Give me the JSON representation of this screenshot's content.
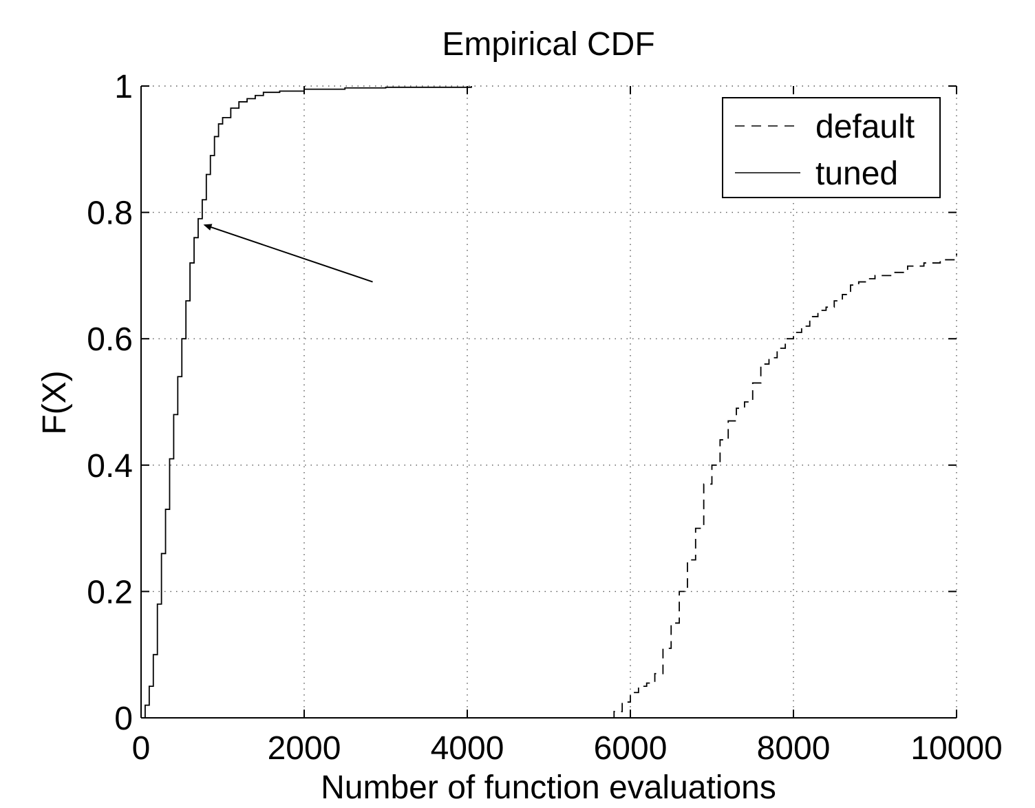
{
  "chart_data": {
    "type": "line",
    "title": "Empirical CDF",
    "xlabel": "Number of function evaluations",
    "ylabel": "F(X)",
    "xlim": [
      0,
      10000
    ],
    "ylim": [
      0,
      1
    ],
    "xticks": [
      0,
      2000,
      4000,
      6000,
      8000,
      10000
    ],
    "yticks": [
      0,
      0.2,
      0.4,
      0.6,
      0.8,
      1
    ],
    "xtick_labels": [
      "0",
      "2000",
      "4000",
      "6000",
      "8000",
      "10000"
    ],
    "ytick_labels": [
      "0",
      "0.2",
      "0.4",
      "0.6",
      "0.8",
      "1"
    ],
    "grid": true,
    "legend_position": "top-right",
    "series": [
      {
        "name": "default",
        "style": "dashed",
        "color": "#000000",
        "x": [
          4800,
          5700,
          5800,
          5900,
          6000,
          6100,
          6200,
          6300,
          6400,
          6500,
          6600,
          6700,
          6800,
          6900,
          7000,
          7100,
          7200,
          7300,
          7400,
          7500,
          7600,
          7700,
          7800,
          7900,
          8000,
          8100,
          8200,
          8300,
          8400,
          8500,
          8600,
          8700,
          8800,
          8900,
          9000,
          9200,
          9400,
          9600,
          9800,
          10000
        ],
        "y": [
          0,
          0,
          0.01,
          0.025,
          0.04,
          0.05,
          0.055,
          0.07,
          0.11,
          0.15,
          0.2,
          0.25,
          0.3,
          0.37,
          0.4,
          0.44,
          0.47,
          0.49,
          0.5,
          0.53,
          0.56,
          0.57,
          0.585,
          0.6,
          0.61,
          0.62,
          0.635,
          0.645,
          0.65,
          0.66,
          0.67,
          0.685,
          0.69,
          0.695,
          0.7,
          0.705,
          0.715,
          0.72,
          0.725,
          0.735
        ]
      },
      {
        "name": "tuned",
        "style": "solid",
        "color": "#000000",
        "x": [
          0,
          50,
          100,
          150,
          200,
          250,
          300,
          350,
          400,
          450,
          500,
          550,
          600,
          650,
          700,
          750,
          800,
          850,
          900,
          950,
          1000,
          1100,
          1200,
          1300,
          1400,
          1500,
          1700,
          2000,
          2500,
          3000,
          4050
        ],
        "y": [
          0,
          0.02,
          0.05,
          0.1,
          0.18,
          0.26,
          0.33,
          0.41,
          0.48,
          0.54,
          0.6,
          0.66,
          0.72,
          0.76,
          0.79,
          0.82,
          0.86,
          0.89,
          0.92,
          0.94,
          0.95,
          0.965,
          0.975,
          0.98,
          0.985,
          0.99,
          0.992,
          0.995,
          0.997,
          0.998,
          1
        ]
      }
    ],
    "annotations": [
      {
        "type": "arrow",
        "from": [
          2840,
          0.69
        ],
        "to": [
          780,
          0.78
        ]
      }
    ]
  }
}
